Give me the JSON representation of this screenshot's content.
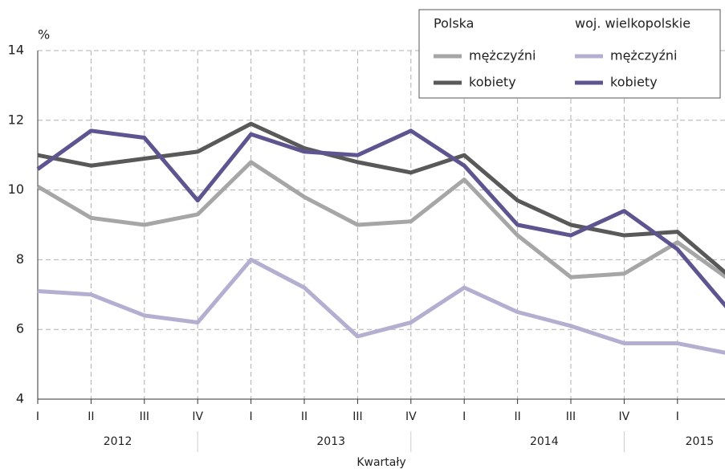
{
  "chart_data": {
    "type": "line",
    "y_unit": "%",
    "x_label": "Kwartały",
    "categories": [
      "I",
      "II",
      "III",
      "IV",
      "I",
      "II",
      "III",
      "IV",
      "I",
      "II",
      "III",
      "IV",
      "I",
      null
    ],
    "year_groups": [
      "2012",
      "2013",
      "2014",
      "2015"
    ],
    "legend_groups": [
      "Polska",
      "woj. wielkopolskie"
    ],
    "series": [
      {
        "name": "mężczyźni",
        "group": 0,
        "color": "#a6a6a6",
        "values": [
          10.1,
          9.2,
          9.0,
          9.3,
          10.8,
          9.8,
          9.0,
          9.1,
          10.3,
          8.7,
          7.5,
          7.6,
          8.5,
          7.4
        ]
      },
      {
        "name": "kobiety",
        "group": 0,
        "color": "#595959",
        "values": [
          11.0,
          10.7,
          10.9,
          11.1,
          11.9,
          11.2,
          10.8,
          10.5,
          11.0,
          9.7,
          9.0,
          8.7,
          8.8,
          7.5
        ]
      },
      {
        "name": "mężczyźni",
        "group": 1,
        "color": "#b4afd1",
        "values": [
          7.1,
          7.0,
          6.4,
          6.2,
          8.0,
          7.2,
          5.8,
          6.2,
          7.2,
          6.5,
          6.1,
          5.6,
          5.6,
          5.3
        ]
      },
      {
        "name": "kobiety",
        "group": 1,
        "color": "#5e5590",
        "values": [
          10.6,
          11.7,
          11.5,
          9.7,
          11.6,
          11.1,
          11.0,
          11.7,
          10.7,
          9.0,
          8.7,
          9.4,
          8.3,
          6.5
        ]
      }
    ],
    "ylim": [
      4,
      14
    ],
    "yticks": [
      4,
      6,
      8,
      10,
      12,
      14
    ],
    "grid": true
  }
}
